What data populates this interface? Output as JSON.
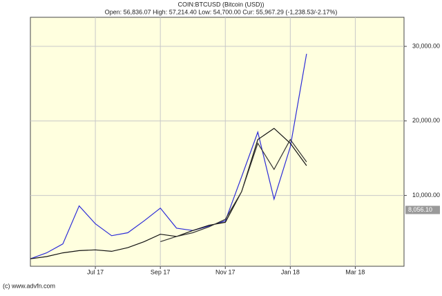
{
  "chart_data": {
    "type": "line",
    "title": "COIN:BTCUSD (Bitcoin (USD))",
    "subtitle": "Open: 56,836.07 High: 57,214.40 Low: 54,700.00 Cur: 55,967.29 (-1,238.53/-2.17%)",
    "footer": "(c) www.advfn.com",
    "categories": [
      null,
      null,
      null,
      null,
      "Jul 17",
      null,
      null,
      null,
      "Sep 17",
      null,
      null,
      null,
      "Nov 17",
      null,
      null,
      null,
      "Jan 18",
      null,
      null,
      null,
      "Mar 18",
      null,
      null,
      null
    ],
    "series": [
      {
        "color": "#2a2ad8",
        "values": [
          1500,
          2300,
          3500,
          8600,
          6200,
          4600,
          5000,
          6600,
          8300,
          5600,
          5300,
          5900,
          6600,
          12500,
          18500,
          9500,
          16500,
          29000,
          null,
          null,
          null,
          null,
          null,
          null
        ]
      },
      {
        "color": "#111111",
        "values": [
          1500,
          1800,
          2300,
          2600,
          2700,
          2500,
          3000,
          3800,
          4800,
          4500,
          5300,
          6000,
          6400,
          10500,
          17500,
          19000,
          17000,
          14000,
          null,
          null,
          null,
          null,
          null,
          null
        ]
      },
      {
        "color": "#333333",
        "values": [
          null,
          null,
          null,
          null,
          null,
          null,
          null,
          null,
          3800,
          4500,
          5000,
          5800,
          6800,
          10500,
          17000,
          13500,
          17500,
          14500,
          null,
          null,
          null,
          null,
          null,
          null
        ]
      }
    ],
    "ylim": [
      500,
      33900
    ],
    "yticks": [
      {
        "value": 10000,
        "label": "10,000.00"
      },
      {
        "value": 20000,
        "label": "20,000.00"
      },
      {
        "value": 30000,
        "label": "30,000.00"
      }
    ],
    "last_value": {
      "value": 8056.1,
      "label": "8,056.10"
    },
    "grid": true,
    "plot_background": "#ffffdf"
  }
}
